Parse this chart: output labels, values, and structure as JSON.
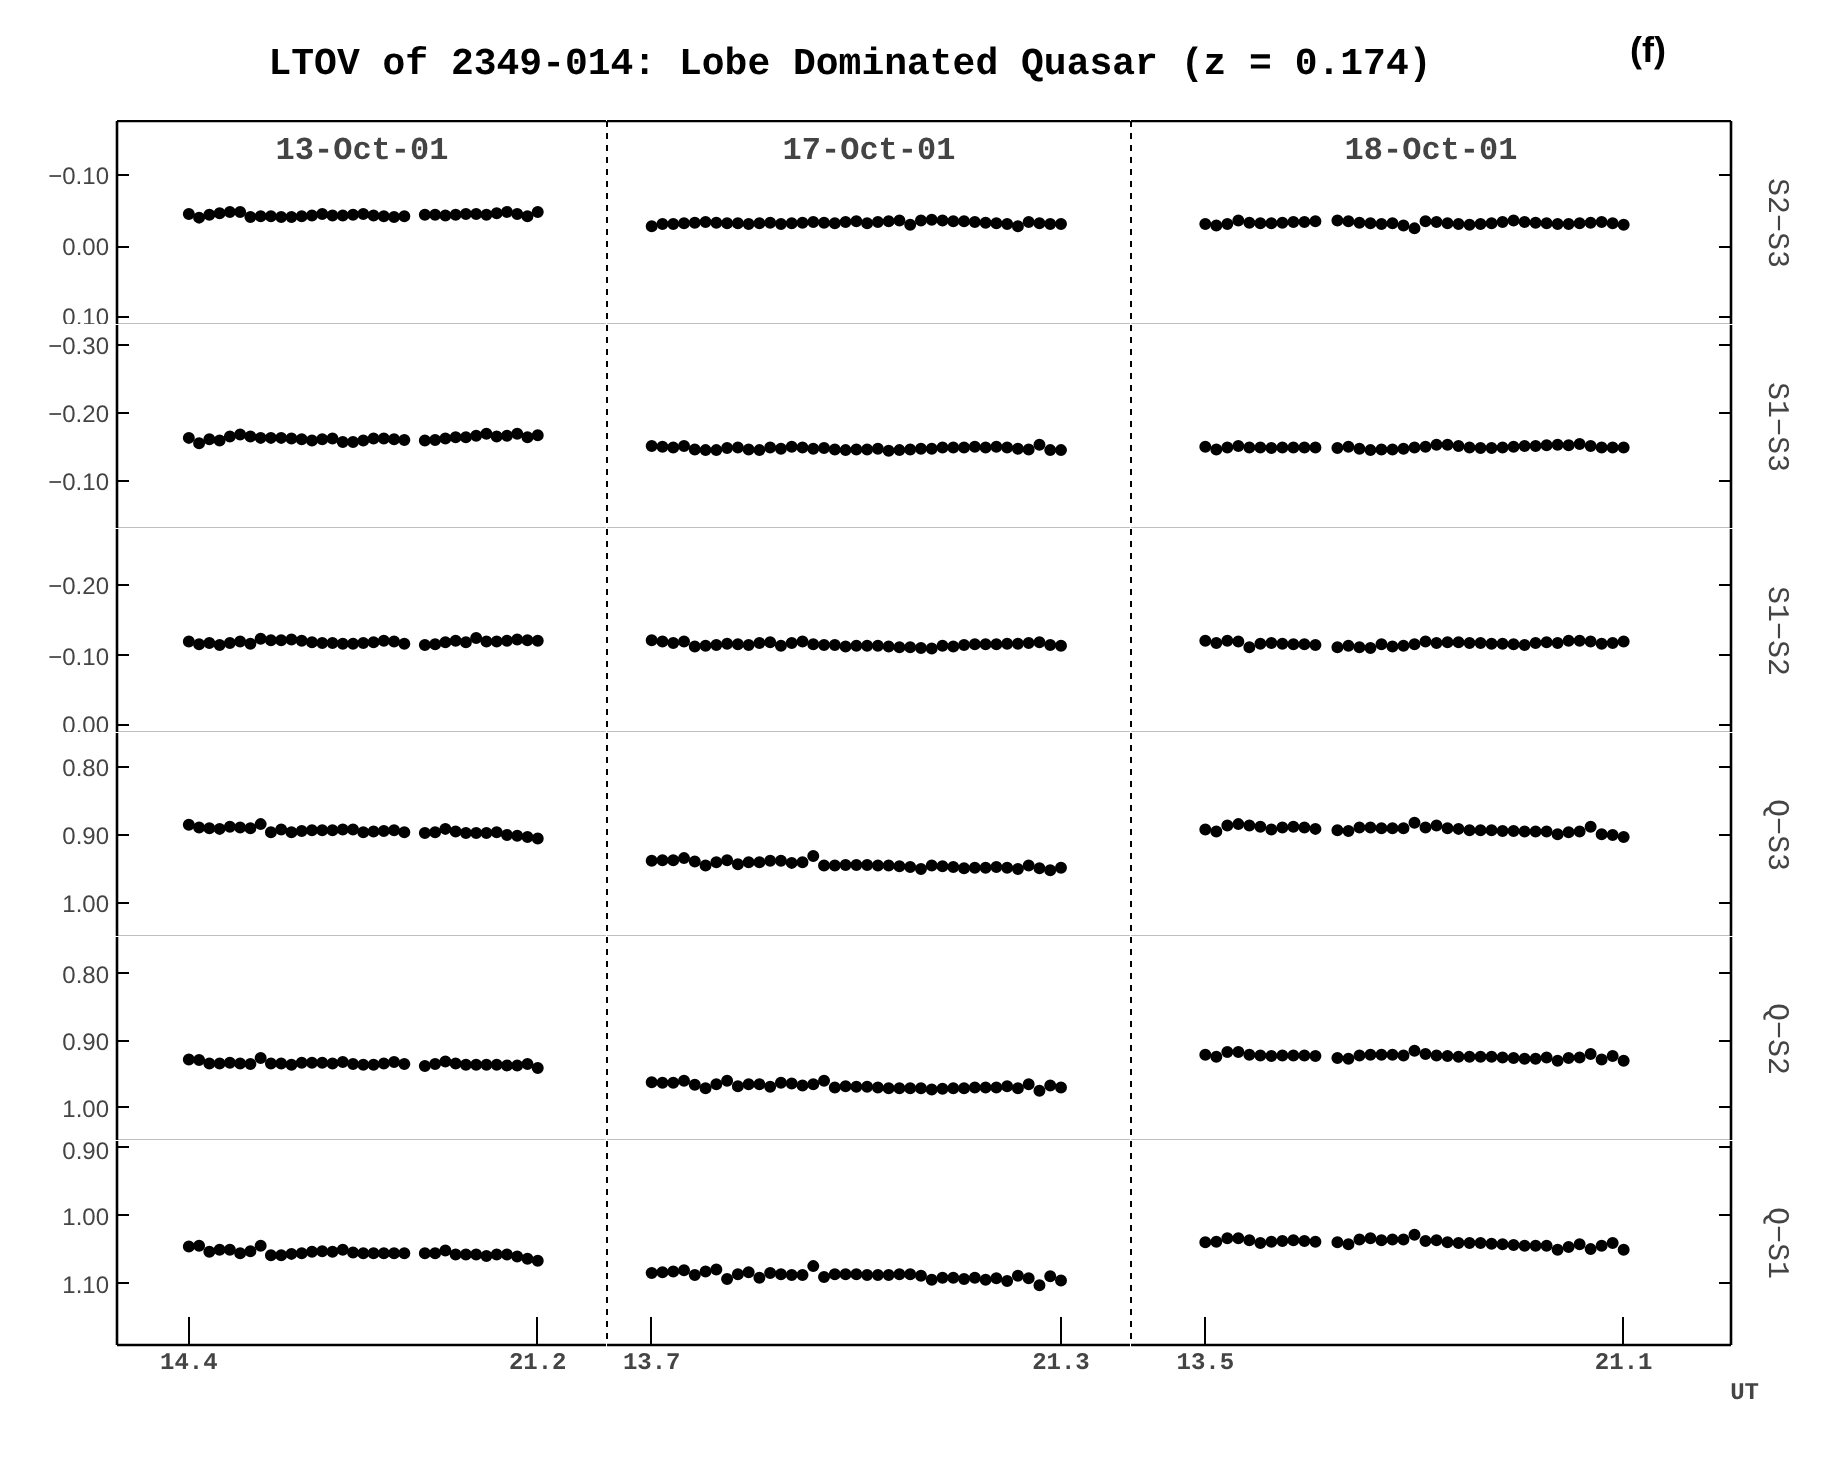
{
  "chart_data": [
    {
      "type": "scatter",
      "title": "LTOV of 2349-014: Lobe Dominated Quasar (z = 0.174)",
      "annotations": [
        "(f)"
      ],
      "subtitle": "13-Oct-01",
      "color": "#000000",
      "marker": "circle",
      "tick_labels": "y",
      "xlim": [
        13.0,
        22.55
      ],
      "xticks": [
        14.4,
        21.2
      ],
      "ylim": [
        0.11,
        -0.175
      ],
      "yticks": [
        {
          "value": -0.1,
          "label": "−0.10"
        },
        {
          "value": 0.0,
          "label": "0.00"
        },
        {
          "value": 0.1,
          "label": "0.10"
        }
      ],
      "x": [
        14.4,
        14.6,
        14.8,
        15.0,
        15.2,
        15.4,
        15.6,
        15.8,
        16.0,
        16.2,
        16.4,
        16.6,
        16.8,
        17.0,
        17.2,
        17.4,
        17.6,
        17.8,
        18.0,
        18.2,
        18.4,
        18.6,
        19.0,
        19.2,
        19.4,
        19.6,
        19.8,
        20.0,
        20.2,
        20.4,
        20.6,
        20.8,
        21.0,
        21.2
      ],
      "values": [
        -0.045,
        -0.04,
        -0.044,
        -0.046,
        -0.048,
        -0.048,
        -0.041,
        -0.042,
        -0.042,
        -0.041,
        -0.041,
        -0.042,
        -0.043,
        -0.045,
        -0.043,
        -0.043,
        -0.044,
        -0.045,
        -0.043,
        -0.042,
        -0.041,
        -0.042,
        -0.044,
        -0.044,
        -0.043,
        -0.044,
        -0.045,
        -0.045,
        -0.044,
        -0.046,
        -0.048,
        -0.045,
        -0.042,
        -0.048
      ]
    },
    {
      "type": "scatter",
      "subtitle": "17-Oct-01",
      "color": "#000000",
      "marker": "circle",
      "tick_labels": false,
      "xlim": [
        12.87,
        22.6
      ],
      "xticks": [
        13.7,
        21.3
      ],
      "ylim": [
        0.11,
        -0.175
      ],
      "x": [
        13.7,
        13.9,
        14.1,
        14.3,
        14.5,
        14.7,
        14.9,
        15.1,
        15.3,
        15.5,
        15.7,
        15.9,
        16.1,
        16.3,
        16.5,
        16.7,
        16.9,
        17.1,
        17.3,
        17.5,
        17.7,
        17.9,
        18.1,
        18.3,
        18.5,
        18.7,
        18.9,
        19.1,
        19.3,
        19.5,
        19.7,
        19.9,
        20.1,
        20.3,
        20.5,
        20.7,
        20.9,
        21.1,
        21.3
      ],
      "values": [
        -0.028,
        -0.031,
        -0.031,
        -0.032,
        -0.033,
        -0.034,
        -0.033,
        -0.032,
        -0.032,
        -0.031,
        -0.032,
        -0.033,
        -0.031,
        -0.032,
        -0.033,
        -0.034,
        -0.033,
        -0.032,
        -0.034,
        -0.035,
        -0.032,
        -0.034,
        -0.035,
        -0.036,
        -0.03,
        -0.036,
        -0.037,
        -0.036,
        -0.035,
        -0.035,
        -0.034,
        -0.033,
        -0.032,
        -0.031,
        -0.028,
        -0.034,
        -0.032,
        -0.031,
        -0.031
      ]
    },
    {
      "type": "scatter",
      "subtitle": "18-Oct-01",
      "ylabel": "S2−S3",
      "color": "#000000",
      "marker": "circle",
      "tick_labels": false,
      "xlim": [
        12.15,
        23.05
      ],
      "xticks": [
        13.5,
        21.1
      ],
      "ylim": [
        0.11,
        -0.175
      ],
      "yticks": [
        {
          "value": -0.1,
          "label": null
        },
        {
          "value": 0.0,
          "label": null
        },
        {
          "value": 0.1,
          "label": null
        }
      ],
      "x": [
        13.5,
        13.7,
        13.9,
        14.1,
        14.3,
        14.5,
        14.7,
        14.9,
        15.1,
        15.3,
        15.5,
        15.9,
        16.1,
        16.3,
        16.5,
        16.7,
        16.9,
        17.1,
        17.3,
        17.5,
        17.7,
        17.9,
        18.1,
        18.3,
        18.5,
        18.7,
        18.9,
        19.1,
        19.3,
        19.5,
        19.7,
        19.9,
        20.1,
        20.3,
        20.5,
        20.7,
        20.9,
        21.1
      ],
      "values": [
        -0.031,
        -0.029,
        -0.031,
        -0.036,
        -0.033,
        -0.032,
        -0.032,
        -0.033,
        -0.034,
        -0.034,
        -0.035,
        -0.036,
        -0.035,
        -0.033,
        -0.032,
        -0.031,
        -0.032,
        -0.029,
        -0.025,
        -0.035,
        -0.034,
        -0.032,
        -0.031,
        -0.03,
        -0.031,
        -0.032,
        -0.034,
        -0.036,
        -0.034,
        -0.033,
        -0.032,
        -0.031,
        -0.031,
        -0.032,
        -0.033,
        -0.034,
        -0.032,
        -0.03
      ]
    },
    {
      "type": "scatter",
      "color": "#000000",
      "marker": "circle",
      "tick_labels": "y",
      "xlim": [
        13.0,
        22.55
      ],
      "xticks": [
        14.4,
        21.2
      ],
      "ylim": [
        -0.03,
        -0.33
      ],
      "yticks": [
        {
          "value": -0.3,
          "label": "−0.30"
        },
        {
          "value": -0.2,
          "label": "−0.20"
        },
        {
          "value": -0.1,
          "label": "−0.10"
        }
      ],
      "x": [
        14.4,
        14.6,
        14.8,
        15.0,
        15.2,
        15.4,
        15.6,
        15.8,
        16.0,
        16.2,
        16.4,
        16.6,
        16.8,
        17.0,
        17.2,
        17.4,
        17.6,
        17.8,
        18.0,
        18.2,
        18.4,
        18.6,
        19.0,
        19.2,
        19.4,
        19.6,
        19.8,
        20.0,
        20.2,
        20.4,
        20.6,
        20.8,
        21.0,
        21.2
      ],
      "values": [
        -0.164,
        -0.156,
        -0.162,
        -0.16,
        -0.166,
        -0.169,
        -0.166,
        -0.164,
        -0.164,
        -0.164,
        -0.163,
        -0.162,
        -0.16,
        -0.162,
        -0.163,
        -0.158,
        -0.158,
        -0.16,
        -0.163,
        -0.163,
        -0.162,
        -0.161,
        -0.16,
        -0.161,
        -0.163,
        -0.165,
        -0.165,
        -0.167,
        -0.17,
        -0.166,
        -0.167,
        -0.17,
        -0.165,
        -0.168
      ]
    },
    {
      "type": "scatter",
      "color": "#000000",
      "marker": "circle",
      "tick_labels": false,
      "xlim": [
        12.87,
        22.6
      ],
      "xticks": [
        13.7,
        21.3
      ],
      "ylim": [
        -0.03,
        -0.33
      ],
      "x": [
        13.7,
        13.9,
        14.1,
        14.3,
        14.5,
        14.7,
        14.9,
        15.1,
        15.3,
        15.5,
        15.7,
        15.9,
        16.1,
        16.3,
        16.5,
        16.7,
        16.9,
        17.1,
        17.3,
        17.5,
        17.7,
        17.9,
        18.1,
        18.3,
        18.5,
        18.7,
        18.9,
        19.1,
        19.3,
        19.5,
        19.7,
        19.9,
        20.1,
        20.3,
        20.5,
        20.7,
        20.9,
        21.1,
        21.3
      ],
      "values": [
        -0.152,
        -0.151,
        -0.15,
        -0.152,
        -0.147,
        -0.146,
        -0.146,
        -0.149,
        -0.15,
        -0.147,
        -0.146,
        -0.15,
        -0.148,
        -0.151,
        -0.15,
        -0.148,
        -0.149,
        -0.147,
        -0.146,
        -0.147,
        -0.147,
        -0.148,
        -0.145,
        -0.146,
        -0.147,
        -0.148,
        -0.148,
        -0.15,
        -0.15,
        -0.15,
        -0.151,
        -0.15,
        -0.151,
        -0.15,
        -0.148,
        -0.147,
        -0.154,
        -0.146,
        -0.146
      ]
    },
    {
      "type": "scatter",
      "ylabel": "S1−S3",
      "color": "#000000",
      "marker": "circle",
      "tick_labels": false,
      "xlim": [
        12.15,
        23.05
      ],
      "xticks": [
        13.5,
        21.1
      ],
      "ylim": [
        -0.03,
        -0.33
      ],
      "yticks": [
        {
          "value": -0.3,
          "label": null
        },
        {
          "value": -0.2,
          "label": null
        },
        {
          "value": -0.1,
          "label": null
        }
      ],
      "x": [
        13.5,
        13.7,
        13.9,
        14.1,
        14.3,
        14.5,
        14.7,
        14.9,
        15.1,
        15.3,
        15.5,
        15.9,
        16.1,
        16.3,
        16.5,
        16.7,
        16.9,
        17.1,
        17.3,
        17.5,
        17.7,
        17.9,
        18.1,
        18.3,
        18.5,
        18.7,
        18.9,
        19.1,
        19.3,
        19.5,
        19.7,
        19.9,
        20.1,
        20.3,
        20.5,
        20.7,
        20.9,
        21.1
      ],
      "values": [
        -0.151,
        -0.147,
        -0.15,
        -0.152,
        -0.15,
        -0.15,
        -0.149,
        -0.15,
        -0.15,
        -0.15,
        -0.15,
        -0.149,
        -0.151,
        -0.148,
        -0.146,
        -0.147,
        -0.147,
        -0.148,
        -0.15,
        -0.151,
        -0.154,
        -0.154,
        -0.152,
        -0.15,
        -0.149,
        -0.149,
        -0.15,
        -0.151,
        -0.152,
        -0.152,
        -0.153,
        -0.154,
        -0.153,
        -0.155,
        -0.152,
        -0.15,
        -0.15,
        -0.15
      ]
    },
    {
      "type": "scatter",
      "color": "#000000",
      "marker": "circle",
      "tick_labels": "y",
      "xlim": [
        13.0,
        22.55
      ],
      "xticks": [
        14.4,
        21.2
      ],
      "ylim": [
        0.01,
        -0.28
      ],
      "yticks": [
        {
          "value": -0.2,
          "label": "−0.20"
        },
        {
          "value": -0.1,
          "label": "−0.10"
        },
        {
          "value": 0.0,
          "label": "0.00"
        }
      ],
      "x": [
        14.4,
        14.6,
        14.8,
        15.0,
        15.2,
        15.4,
        15.6,
        15.8,
        16.0,
        16.2,
        16.4,
        16.6,
        16.8,
        17.0,
        17.2,
        17.4,
        17.6,
        17.8,
        18.0,
        18.2,
        18.4,
        18.6,
        19.0,
        19.2,
        19.4,
        19.6,
        19.8,
        20.0,
        20.2,
        20.4,
        20.6,
        20.8,
        21.0,
        21.2
      ],
      "values": [
        -0.12,
        -0.116,
        -0.118,
        -0.115,
        -0.118,
        -0.12,
        -0.117,
        -0.124,
        -0.122,
        -0.122,
        -0.123,
        -0.121,
        -0.119,
        -0.118,
        -0.118,
        -0.117,
        -0.117,
        -0.118,
        -0.119,
        -0.121,
        -0.12,
        -0.117,
        -0.115,
        -0.116,
        -0.119,
        -0.121,
        -0.119,
        -0.125,
        -0.12,
        -0.12,
        -0.121,
        -0.123,
        -0.122,
        -0.121
      ]
    },
    {
      "type": "scatter",
      "color": "#000000",
      "marker": "circle",
      "tick_labels": false,
      "xlim": [
        12.87,
        22.6
      ],
      "xticks": [
        13.7,
        21.3
      ],
      "ylim": [
        0.01,
        -0.28
      ],
      "x": [
        13.7,
        13.9,
        14.1,
        14.3,
        14.5,
        14.7,
        14.9,
        15.1,
        15.3,
        15.5,
        15.7,
        15.9,
        16.1,
        16.3,
        16.5,
        16.7,
        16.9,
        17.1,
        17.3,
        17.5,
        17.7,
        17.9,
        18.1,
        18.3,
        18.5,
        18.7,
        18.9,
        19.1,
        19.3,
        19.5,
        19.7,
        19.9,
        20.1,
        20.3,
        20.5,
        20.7,
        20.9,
        21.1,
        21.3
      ],
      "values": [
        -0.122,
        -0.12,
        -0.118,
        -0.12,
        -0.113,
        -0.114,
        -0.115,
        -0.117,
        -0.116,
        -0.115,
        -0.118,
        -0.119,
        -0.114,
        -0.118,
        -0.12,
        -0.116,
        -0.115,
        -0.115,
        -0.113,
        -0.114,
        -0.114,
        -0.114,
        -0.113,
        -0.112,
        -0.112,
        -0.111,
        -0.11,
        -0.114,
        -0.113,
        -0.115,
        -0.116,
        -0.116,
        -0.116,
        -0.117,
        -0.117,
        -0.118,
        -0.119,
        -0.115,
        -0.114
      ]
    },
    {
      "type": "scatter",
      "ylabel": "S1−S2",
      "color": "#000000",
      "marker": "circle",
      "tick_labels": false,
      "xlim": [
        12.15,
        23.05
      ],
      "xticks": [
        13.5,
        21.1
      ],
      "ylim": [
        0.01,
        -0.28
      ],
      "yticks": [
        {
          "value": -0.2,
          "label": null
        },
        {
          "value": -0.1,
          "label": null
        },
        {
          "value": 0.0,
          "label": null
        }
      ],
      "x": [
        13.5,
        13.7,
        13.9,
        14.1,
        14.3,
        14.5,
        14.7,
        14.9,
        15.1,
        15.3,
        15.5,
        15.9,
        16.1,
        16.3,
        16.5,
        16.7,
        16.9,
        17.1,
        17.3,
        17.5,
        17.7,
        17.9,
        18.1,
        18.3,
        18.5,
        18.7,
        18.9,
        19.1,
        19.3,
        19.5,
        19.7,
        19.9,
        20.1,
        20.3,
        20.5,
        20.7,
        20.9,
        21.1
      ],
      "values": [
        -0.121,
        -0.118,
        -0.121,
        -0.12,
        -0.112,
        -0.117,
        -0.118,
        -0.117,
        -0.116,
        -0.116,
        -0.115,
        -0.112,
        -0.114,
        -0.112,
        -0.111,
        -0.116,
        -0.113,
        -0.114,
        -0.116,
        -0.12,
        -0.118,
        -0.119,
        -0.119,
        -0.118,
        -0.118,
        -0.117,
        -0.117,
        -0.116,
        -0.115,
        -0.118,
        -0.119,
        -0.118,
        -0.121,
        -0.121,
        -0.12,
        -0.117,
        -0.118,
        -0.12
      ]
    },
    {
      "type": "scatter",
      "color": "#000000",
      "marker": "circle",
      "tick_labels": "y",
      "xlim": [
        13.0,
        22.55
      ],
      "xticks": [
        14.4,
        21.2
      ],
      "ylim": [
        1.05,
        0.75
      ],
      "yticks": [
        {
          "value": 0.8,
          "label": "0.80"
        },
        {
          "value": 0.9,
          "label": "0.90"
        },
        {
          "value": 1.0,
          "label": "1.00"
        }
      ],
      "x": [
        14.4,
        14.6,
        14.8,
        15.0,
        15.2,
        15.4,
        15.6,
        15.8,
        16.0,
        16.2,
        16.4,
        16.6,
        16.8,
        17.0,
        17.2,
        17.4,
        17.6,
        17.8,
        18.0,
        18.2,
        18.4,
        18.6,
        19.0,
        19.2,
        19.4,
        19.6,
        19.8,
        20.0,
        20.2,
        20.4,
        20.6,
        20.8,
        21.0,
        21.2
      ],
      "values": [
        0.885,
        0.889,
        0.89,
        0.891,
        0.888,
        0.889,
        0.89,
        0.884,
        0.896,
        0.892,
        0.896,
        0.894,
        0.893,
        0.893,
        0.893,
        0.892,
        0.892,
        0.896,
        0.895,
        0.894,
        0.893,
        0.896,
        0.897,
        0.896,
        0.891,
        0.895,
        0.897,
        0.897,
        0.897,
        0.896,
        0.9,
        0.901,
        0.903,
        0.905
      ]
    },
    {
      "type": "scatter",
      "color": "#000000",
      "marker": "circle",
      "tick_labels": false,
      "xlim": [
        12.87,
        22.6
      ],
      "xticks": [
        13.7,
        21.3
      ],
      "ylim": [
        1.05,
        0.75
      ],
      "x": [
        13.7,
        13.9,
        14.1,
        14.3,
        14.5,
        14.7,
        14.9,
        15.1,
        15.3,
        15.5,
        15.7,
        15.9,
        16.1,
        16.3,
        16.5,
        16.7,
        16.9,
        17.1,
        17.3,
        17.5,
        17.7,
        17.9,
        18.1,
        18.3,
        18.5,
        18.7,
        18.9,
        19.1,
        19.3,
        19.5,
        19.7,
        19.9,
        20.1,
        20.3,
        20.5,
        20.7,
        20.9,
        21.1,
        21.3
      ],
      "values": [
        0.938,
        0.937,
        0.937,
        0.934,
        0.939,
        0.945,
        0.94,
        0.937,
        0.943,
        0.94,
        0.94,
        0.938,
        0.938,
        0.941,
        0.94,
        0.931,
        0.945,
        0.945,
        0.944,
        0.944,
        0.944,
        0.945,
        0.945,
        0.946,
        0.947,
        0.95,
        0.945,
        0.946,
        0.947,
        0.949,
        0.948,
        0.948,
        0.947,
        0.948,
        0.95,
        0.945,
        0.949,
        0.952,
        0.948
      ]
    },
    {
      "type": "scatter",
      "ylabel": "Q−S3",
      "color": "#000000",
      "marker": "circle",
      "tick_labels": false,
      "xlim": [
        12.15,
        23.05
      ],
      "xticks": [
        13.5,
        21.1
      ],
      "ylim": [
        1.05,
        0.75
      ],
      "yticks": [
        {
          "value": 0.8,
          "label": null
        },
        {
          "value": 0.9,
          "label": null
        },
        {
          "value": 1.0,
          "label": null
        }
      ],
      "x": [
        13.5,
        13.7,
        13.9,
        14.1,
        14.3,
        14.5,
        14.7,
        14.9,
        15.1,
        15.3,
        15.5,
        15.9,
        16.1,
        16.3,
        16.5,
        16.7,
        16.9,
        17.1,
        17.3,
        17.5,
        17.7,
        17.9,
        18.1,
        18.3,
        18.5,
        18.7,
        18.9,
        19.1,
        19.3,
        19.5,
        19.7,
        19.9,
        20.1,
        20.3,
        20.5,
        20.7,
        20.9,
        21.1
      ],
      "values": [
        0.892,
        0.895,
        0.886,
        0.884,
        0.886,
        0.888,
        0.892,
        0.889,
        0.888,
        0.889,
        0.891,
        0.893,
        0.894,
        0.889,
        0.889,
        0.89,
        0.89,
        0.89,
        0.882,
        0.889,
        0.886,
        0.89,
        0.891,
        0.893,
        0.893,
        0.893,
        0.894,
        0.894,
        0.895,
        0.895,
        0.895,
        0.899,
        0.896,
        0.895,
        0.888,
        0.899,
        0.9,
        0.903
      ]
    },
    {
      "type": "scatter",
      "color": "#000000",
      "marker": "circle",
      "tick_labels": "y",
      "xlim": [
        13.0,
        22.55
      ],
      "xticks": [
        14.4,
        21.2
      ],
      "ylim": [
        1.05,
        0.745
      ],
      "yticks": [
        {
          "value": 0.8,
          "label": "0.80"
        },
        {
          "value": 0.9,
          "label": "0.90"
        },
        {
          "value": 1.0,
          "label": "1.00"
        }
      ],
      "x": [
        14.4,
        14.6,
        14.8,
        15.0,
        15.2,
        15.4,
        15.6,
        15.8,
        16.0,
        16.2,
        16.4,
        16.6,
        16.8,
        17.0,
        17.2,
        17.4,
        17.6,
        17.8,
        18.0,
        18.2,
        18.4,
        18.6,
        19.0,
        19.2,
        19.4,
        19.6,
        19.8,
        20.0,
        20.2,
        20.4,
        20.6,
        20.8,
        21.0,
        21.2
      ],
      "values": [
        0.928,
        0.929,
        0.934,
        0.934,
        0.933,
        0.934,
        0.935,
        0.926,
        0.934,
        0.934,
        0.936,
        0.933,
        0.933,
        0.933,
        0.934,
        0.932,
        0.935,
        0.936,
        0.936,
        0.934,
        0.932,
        0.935,
        0.938,
        0.935,
        0.931,
        0.934,
        0.936,
        0.936,
        0.936,
        0.936,
        0.937,
        0.937,
        0.935,
        0.941
      ]
    },
    {
      "type": "scatter",
      "color": "#000000",
      "marker": "circle",
      "tick_labels": false,
      "xlim": [
        12.87,
        22.6
      ],
      "xticks": [
        13.7,
        21.3
      ],
      "ylim": [
        1.05,
        0.745
      ],
      "x": [
        13.7,
        13.9,
        14.1,
        14.3,
        14.5,
        14.7,
        14.9,
        15.1,
        15.3,
        15.5,
        15.7,
        15.9,
        16.1,
        16.3,
        16.5,
        16.7,
        16.9,
        17.1,
        17.3,
        17.5,
        17.7,
        17.9,
        18.1,
        18.3,
        18.5,
        18.7,
        18.9,
        19.1,
        19.3,
        19.5,
        19.7,
        19.9,
        20.1,
        20.3,
        20.5,
        20.7,
        20.9,
        21.1,
        21.3
      ],
      "values": [
        0.962,
        0.963,
        0.963,
        0.96,
        0.966,
        0.971,
        0.965,
        0.96,
        0.968,
        0.965,
        0.965,
        0.969,
        0.963,
        0.964,
        0.967,
        0.965,
        0.96,
        0.97,
        0.968,
        0.969,
        0.969,
        0.97,
        0.971,
        0.971,
        0.971,
        0.971,
        0.973,
        0.972,
        0.971,
        0.971,
        0.97,
        0.97,
        0.97,
        0.968,
        0.971,
        0.965,
        0.975,
        0.967,
        0.97
      ]
    },
    {
      "type": "scatter",
      "ylabel": "Q−S2",
      "color": "#000000",
      "marker": "circle",
      "tick_labels": false,
      "xlim": [
        12.15,
        23.05
      ],
      "xticks": [
        13.5,
        21.1
      ],
      "ylim": [
        1.05,
        0.745
      ],
      "yticks": [
        {
          "value": 0.8,
          "label": null
        },
        {
          "value": 0.9,
          "label": null
        },
        {
          "value": 1.0,
          "label": null
        }
      ],
      "x": [
        13.5,
        13.7,
        13.9,
        14.1,
        14.3,
        14.5,
        14.7,
        14.9,
        15.1,
        15.3,
        15.5,
        15.9,
        16.1,
        16.3,
        16.5,
        16.7,
        16.9,
        17.1,
        17.3,
        17.5,
        17.7,
        17.9,
        18.1,
        18.3,
        18.5,
        18.7,
        18.9,
        19.1,
        19.3,
        19.5,
        19.7,
        19.9,
        20.1,
        20.3,
        20.5,
        20.7,
        20.9,
        21.1
      ],
      "values": [
        0.921,
        0.924,
        0.917,
        0.917,
        0.921,
        0.922,
        0.923,
        0.922,
        0.922,
        0.922,
        0.923,
        0.926,
        0.927,
        0.922,
        0.921,
        0.921,
        0.921,
        0.922,
        0.915,
        0.92,
        0.922,
        0.923,
        0.924,
        0.924,
        0.924,
        0.924,
        0.925,
        0.926,
        0.927,
        0.927,
        0.925,
        0.93,
        0.926,
        0.925,
        0.92,
        0.928,
        0.923,
        0.93
      ]
    },
    {
      "type": "scatter",
      "color": "#000000",
      "marker": "circle",
      "xlim": [
        13.0,
        22.55
      ],
      "xticks": [
        14.4,
        21.2
      ],
      "ylim": [
        1.19,
        0.89
      ],
      "yticks": [
        {
          "value": 0.9,
          "label": "0.90"
        },
        {
          "value": 1.0,
          "label": "1.00"
        },
        {
          "value": 1.1,
          "label": "1.10"
        }
      ],
      "x": [
        14.4,
        14.6,
        14.8,
        15.0,
        15.2,
        15.4,
        15.6,
        15.8,
        16.0,
        16.2,
        16.4,
        16.6,
        16.8,
        17.0,
        17.2,
        17.4,
        17.6,
        17.8,
        18.0,
        18.2,
        18.4,
        18.6,
        19.0,
        19.2,
        19.4,
        19.6,
        19.8,
        20.0,
        20.2,
        20.4,
        20.6,
        20.8,
        21.0,
        21.2
      ],
      "values": [
        1.045,
        1.044,
        1.053,
        1.05,
        1.05,
        1.055,
        1.052,
        1.044,
        1.058,
        1.058,
        1.056,
        1.055,
        1.053,
        1.052,
        1.053,
        1.05,
        1.054,
        1.055,
        1.055,
        1.055,
        1.055,
        1.055,
        1.055,
        1.055,
        1.051,
        1.057,
        1.057,
        1.057,
        1.059,
        1.057,
        1.057,
        1.06,
        1.063,
        1.066
      ]
    },
    {
      "type": "scatter",
      "color": "#000000",
      "marker": "circle",
      "tick_labels": "x",
      "xlim": [
        12.87,
        22.6
      ],
      "xticks": [
        13.7,
        21.3
      ],
      "ylim": [
        1.19,
        0.89
      ],
      "x": [
        13.7,
        13.9,
        14.1,
        14.3,
        14.5,
        14.7,
        14.9,
        15.1,
        15.3,
        15.5,
        15.7,
        15.9,
        16.1,
        16.3,
        16.5,
        16.7,
        16.9,
        17.1,
        17.3,
        17.5,
        17.7,
        17.9,
        18.1,
        18.3,
        18.5,
        18.7,
        18.9,
        19.1,
        19.3,
        19.5,
        19.7,
        19.9,
        20.1,
        20.3,
        20.5,
        20.7,
        20.9,
        21.1,
        21.3
      ],
      "values": [
        1.084,
        1.083,
        1.082,
        1.08,
        1.087,
        1.082,
        1.079,
        1.093,
        1.086,
        1.083,
        1.091,
        1.084,
        1.086,
        1.087,
        1.087,
        1.074,
        1.09,
        1.086,
        1.086,
        1.086,
        1.087,
        1.087,
        1.087,
        1.086,
        1.086,
        1.088,
        1.094,
        1.091,
        1.091,
        1.093,
        1.091,
        1.094,
        1.092,
        1.096,
        1.088,
        1.092,
        1.102,
        1.089,
        1.095
      ]
    },
    {
      "type": "scatter",
      "ylabel": "Q−S1",
      "xlabel": "UT",
      "color": "#000000",
      "marker": "circle",
      "tick_labels": "x",
      "xlim": [
        12.15,
        23.05
      ],
      "xticks": [
        13.5,
        21.1
      ],
      "ylim": [
        1.19,
        0.89
      ],
      "yticks": [
        {
          "value": 0.9,
          "label": null
        },
        {
          "value": 1.0,
          "label": null
        },
        {
          "value": 1.1,
          "label": null
        }
      ],
      "x": [
        13.5,
        13.7,
        13.9,
        14.1,
        14.3,
        14.5,
        14.7,
        14.9,
        15.1,
        15.3,
        15.5,
        15.9,
        16.1,
        16.3,
        16.5,
        16.7,
        16.9,
        17.1,
        17.3,
        17.5,
        17.7,
        17.9,
        18.1,
        18.3,
        18.5,
        18.7,
        18.9,
        19.1,
        19.3,
        19.5,
        19.7,
        19.9,
        20.1,
        20.3,
        20.5,
        20.7,
        20.9,
        21.1
      ],
      "values": [
        1.039,
        1.038,
        1.033,
        1.033,
        1.036,
        1.04,
        1.038,
        1.037,
        1.036,
        1.037,
        1.038,
        1.039,
        1.042,
        1.035,
        1.033,
        1.036,
        1.035,
        1.035,
        1.028,
        1.037,
        1.036,
        1.039,
        1.04,
        1.04,
        1.04,
        1.041,
        1.042,
        1.043,
        1.044,
        1.044,
        1.044,
        1.05,
        1.046,
        1.042,
        1.049,
        1.044,
        1.04,
        1.05
      ]
    }
  ]
}
